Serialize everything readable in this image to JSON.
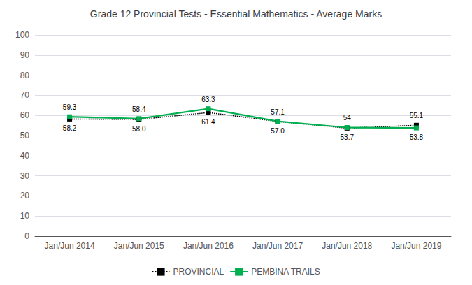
{
  "chart_data": {
    "type": "line",
    "title": "Grade 12 Provincial Tests - Essential Mathematics - Average Marks",
    "categories": [
      "Jan/Jun 2014",
      "Jan/Jun 2015",
      "Jan/Jun 2016",
      "Jan/Jun 2017",
      "Jan/Jun 2018",
      "Jan/Jun 2019"
    ],
    "series": [
      {
        "name": "PROVINCIAL",
        "color": "#000000",
        "line_style": "dotted",
        "marker": "square",
        "values": [
          58.2,
          58.0,
          61.4,
          57.0,
          53.7,
          55.1
        ],
        "value_labels": [
          "58.2",
          "58.0",
          "61.4",
          "57.0",
          "53.7",
          "55.1"
        ]
      },
      {
        "name": "PEMBINA TRAILS",
        "color": "#00b050",
        "line_style": "solid",
        "marker": "square",
        "values": [
          59.3,
          58.4,
          63.3,
          57.1,
          54.0,
          53.8
        ]
      }
    ],
    "ylim": [
      0,
      100
    ],
    "yticks": [
      0,
      10,
      20,
      30,
      40,
      50,
      60,
      70,
      80,
      90,
      100
    ],
    "grid": true,
    "legend": "bottom",
    "data_labels": true
  }
}
